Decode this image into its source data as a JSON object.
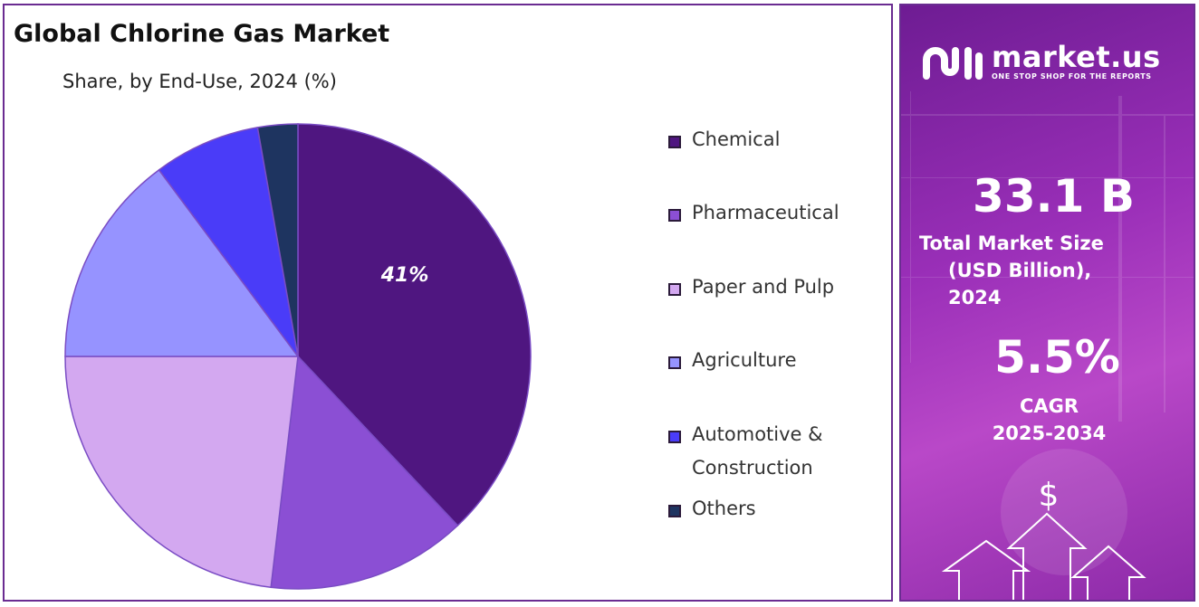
{
  "header": {
    "title": "Global Chlorine Gas Market",
    "subtitle": "Share, by End-Use, 2024 (%)"
  },
  "chart_data": {
    "type": "pie",
    "title": "Global Chlorine Gas Market",
    "subtitle": "Share, by End-Use, 2024 (%)",
    "categories": [
      "Chemical",
      "Pharmaceutical",
      "Paper and Pulp",
      "Agriculture",
      "Automotive & Construction",
      "Others"
    ],
    "values": [
      41,
      15,
      25,
      16,
      8,
      3
    ],
    "colors": [
      "#4f1680",
      "#8b4fd4",
      "#d3a8f0",
      "#9693ff",
      "#4a3cf8",
      "#1e3460"
    ],
    "data_labels": [
      "41%",
      "",
      "",
      "",
      "",
      ""
    ],
    "legend_position": "right"
  },
  "legend": {
    "items": [
      {
        "label": "Chemical",
        "color": "#4f1680"
      },
      {
        "label": "Pharmaceutical",
        "color": "#8b4fd4"
      },
      {
        "label": "Paper and Pulp",
        "color": "#d3a8f0"
      },
      {
        "label": "Agriculture",
        "color": "#9693ff"
      },
      {
        "label": "Automotive & Construction",
        "color": "#4a3cf8"
      },
      {
        "label": "Others",
        "color": "#1e3460"
      }
    ]
  },
  "sidebar": {
    "brand": {
      "name": "market.us",
      "tagline": "ONE STOP SHOP FOR THE REPORTS",
      "logo_icon": "market-us-logo"
    },
    "market_size": {
      "value": "33.1 B",
      "label_line1": "Total Market Size",
      "label_line2": "(USD Billion), 2024"
    },
    "cagr": {
      "value": "5.5%",
      "label_line1": "CAGR",
      "label_line2": "2025-2034"
    },
    "currency_symbol": "$",
    "colors": {
      "panel_start": "#6e1c93",
      "panel_mid": "#b948c8",
      "border": "#6a2c91"
    }
  }
}
